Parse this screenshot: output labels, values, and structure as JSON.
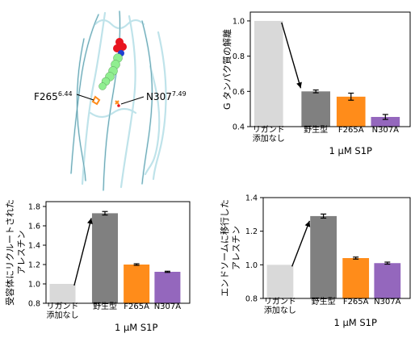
{
  "structure_panel": {
    "residue_labels": [
      {
        "name": "F265",
        "superscript": "6.44"
      },
      {
        "name": "N307",
        "superscript": "7.49"
      }
    ]
  },
  "palette": {
    "no_ligand": "#d9d9d9",
    "wild_type": "#808080",
    "F265A": "#ff8c1a",
    "N307A": "#9467bd",
    "axis": "#000000",
    "helix": "#bfe3ea",
    "ligand_carbon": "#90ee90",
    "ligand_oxygen": "#e8141f",
    "ligand_nitrogen": "#1f3fd1"
  },
  "chart_data": [
    {
      "id": "g-protein",
      "type": "bar",
      "ylabel": "G タンパク質の解離",
      "ylim": [
        0.4,
        1.05
      ],
      "yticks": [
        0.4,
        0.6,
        0.8,
        1.0
      ],
      "ytick_labels": [
        "0.4",
        "0.6",
        "0.8",
        "1.0"
      ],
      "categories": [
        "リガンド\n添加なし",
        "野生型",
        "F265A",
        "N307A"
      ],
      "values": [
        1.0,
        0.6,
        0.57,
        0.455
      ],
      "errors": [
        0,
        0.008,
        0.02,
        0.014
      ],
      "colors": [
        "#d9d9d9",
        "#808080",
        "#ff8c1a",
        "#9467bd"
      ],
      "group_label": "1 µM S1P",
      "arrow": {
        "from": 0,
        "to": 1
      }
    },
    {
      "id": "arrestin-recruitment",
      "type": "bar",
      "ylabel": "受容体にリクルートされた\nアレスチン",
      "ylim": [
        0.8,
        1.85
      ],
      "yticks": [
        0.8,
        1.0,
        1.2,
        1.4,
        1.6,
        1.8
      ],
      "ytick_labels": [
        "0.8",
        "1.0",
        "1.2",
        "1.4",
        "1.6",
        "1.8"
      ],
      "categories": [
        "リガンド\n添加なし",
        "野生型",
        "F265A",
        "N307A"
      ],
      "values": [
        1.0,
        1.73,
        1.2,
        1.125
      ],
      "errors": [
        0,
        0.018,
        0.008,
        0.006
      ],
      "colors": [
        "#d9d9d9",
        "#808080",
        "#ff8c1a",
        "#9467bd"
      ],
      "group_label": "1 µM S1P",
      "arrow": {
        "from": 0,
        "to": 1
      }
    },
    {
      "id": "arrestin-endosome",
      "type": "bar",
      "ylabel": "エンドソームに移行した\nアレスチン",
      "ylim": [
        0.8,
        1.4
      ],
      "yticks": [
        0.8,
        1.0,
        1.2,
        1.4
      ],
      "ytick_labels": [
        "0.8",
        "1.0",
        "1.2",
        "1.4"
      ],
      "categories": [
        "リガンド\n添加なし",
        "野生型",
        "F265A",
        "N307A"
      ],
      "values": [
        1.0,
        1.29,
        1.04,
        1.01
      ],
      "errors": [
        0,
        0.012,
        0.006,
        0.006
      ],
      "colors": [
        "#d9d9d9",
        "#808080",
        "#ff8c1a",
        "#9467bd"
      ],
      "group_label": "1 µM S1P",
      "arrow": {
        "from": 0,
        "to": 1
      }
    }
  ]
}
